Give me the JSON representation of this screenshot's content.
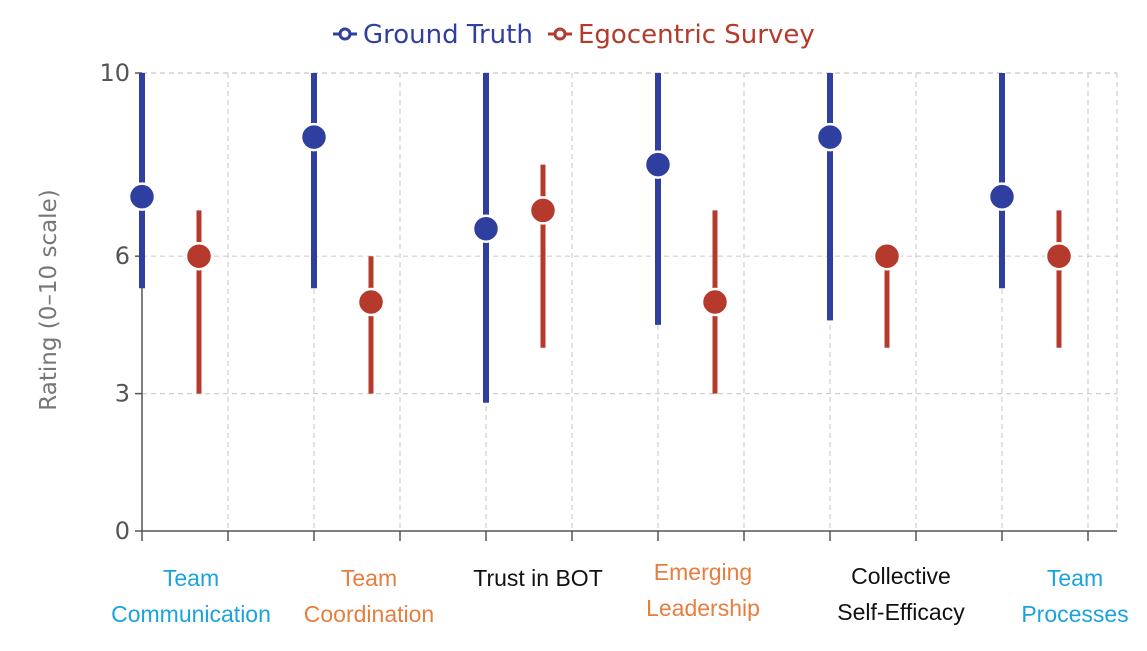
{
  "chart_data": {
    "type": "range-dot",
    "title": "",
    "ylabel": "Rating (0–10 scale)",
    "xlabel": "",
    "ylim": [
      0,
      10
    ],
    "yticks": [
      0,
      3,
      6,
      10
    ],
    "grid": true,
    "legend_position": "top-center",
    "categories": [
      {
        "id": "team-communication",
        "lines": [
          "Team",
          "Communication"
        ],
        "color": "#1aa3dd"
      },
      {
        "id": "team-coordination",
        "lines": [
          "Team",
          "Coordination"
        ],
        "color": "#e67e3e"
      },
      {
        "id": "trust-in-bot",
        "lines": [
          "Trust in BOT"
        ],
        "color": "#111111"
      },
      {
        "id": "emerging-leadership",
        "lines": [
          "Emerging",
          "Leadership"
        ],
        "color": "#e67e3e"
      },
      {
        "id": "collective-self-efficacy",
        "lines": [
          "Collective",
          "Self-Efficacy"
        ],
        "color": "#111111"
      },
      {
        "id": "team-processes",
        "lines": [
          "Team",
          "Processes"
        ],
        "color": "#1aa3dd"
      }
    ],
    "series": [
      {
        "name": "Ground Truth",
        "color": "#2f3fa0",
        "values": [
          7.3,
          8.6,
          6.6,
          8.0,
          8.6,
          7.3
        ],
        "low": [
          5.3,
          5.3,
          2.8,
          4.5,
          4.6,
          5.3
        ],
        "high": [
          10,
          10,
          10,
          10,
          10,
          10
        ]
      },
      {
        "name": "Egocentric Survey",
        "color": "#b53a2c",
        "values": [
          6.0,
          5.0,
          7.0,
          5.0,
          6.0,
          6.0
        ],
        "low": [
          3.0,
          3.0,
          4.0,
          3.0,
          4.0,
          4.0
        ],
        "high": [
          7.0,
          6.0,
          8.0,
          7.0,
          6.0,
          7.0
        ]
      }
    ]
  }
}
